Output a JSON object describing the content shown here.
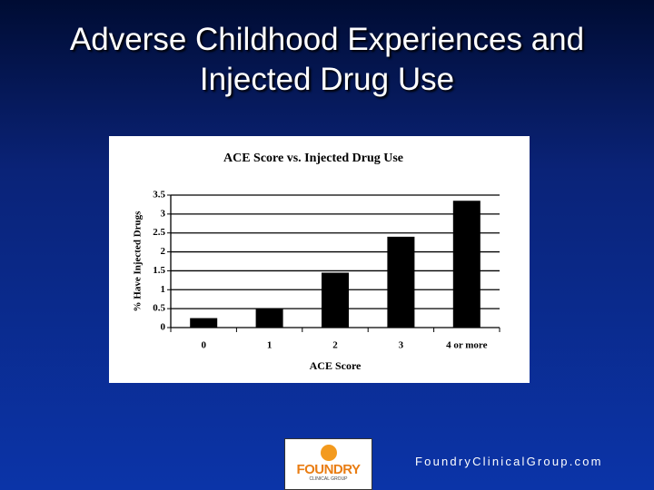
{
  "slide": {
    "title": "Adverse Childhood Experiences and Injected Drug Use",
    "footer": "FoundryClinicalGroup.com",
    "logo": "FOUNDRY",
    "logo_sub": "CLINICAL GROUP"
  },
  "chart_data": {
    "type": "bar",
    "title": "ACE Score vs. Injected Drug Use",
    "x_label": "ACE Score",
    "y_label": "% Have Injected Drugs",
    "categories": [
      "0",
      "1",
      "2",
      "3",
      "4 or more"
    ],
    "values": [
      0.25,
      0.5,
      1.45,
      2.4,
      3.35
    ],
    "color": "#000000",
    "ylim": [
      0,
      3.5
    ],
    "yticks": [
      0,
      0.5,
      1,
      1.5,
      2,
      2.5,
      3,
      3.5
    ],
    "grid": true
  }
}
